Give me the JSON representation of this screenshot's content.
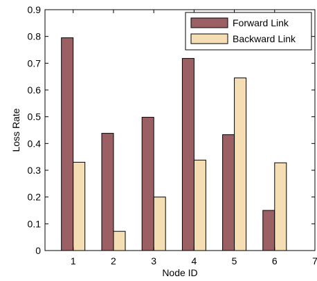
{
  "chart_data": {
    "type": "bar",
    "categories": [
      "1",
      "2",
      "3",
      "4",
      "5",
      "6"
    ],
    "x_ticks": [
      "1",
      "2",
      "3",
      "4",
      "5",
      "6",
      "7"
    ],
    "xlabel": "Node ID",
    "ylabel": "Loss Rate",
    "ylim": [
      0,
      0.9
    ],
    "y_ticks": [
      "0",
      "0.1",
      "0.2",
      "0.3",
      "0.4",
      "0.5",
      "0.6",
      "0.7",
      "0.8",
      "0.9"
    ],
    "grid": false,
    "legend_position": "top-right",
    "series": [
      {
        "name": "Forward Link",
        "color": "#9b6063",
        "values": [
          0.795,
          0.438,
          0.498,
          0.718,
          0.433,
          0.15
        ]
      },
      {
        "name": "Backward Link",
        "color": "#f5deb3",
        "values": [
          0.33,
          0.072,
          0.2,
          0.338,
          0.645,
          0.328
        ]
      }
    ]
  }
}
